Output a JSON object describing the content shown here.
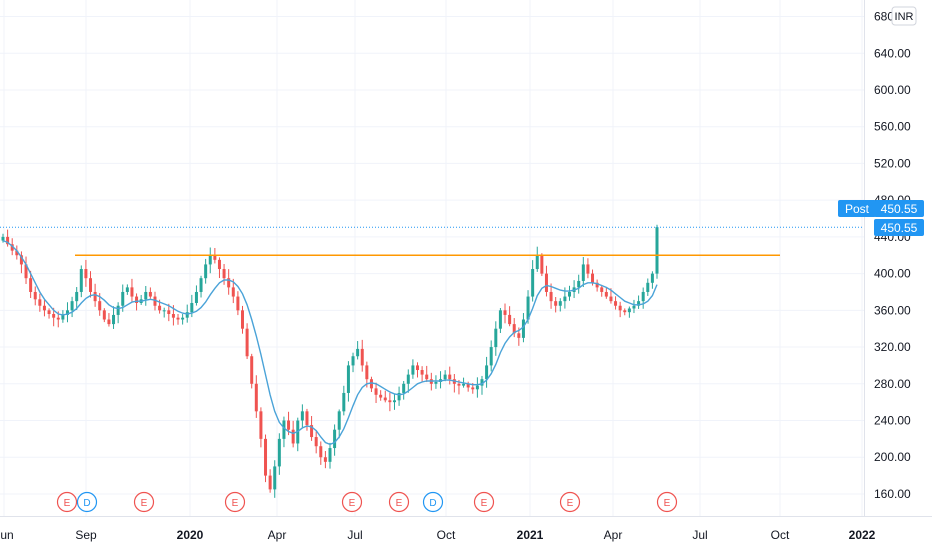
{
  "currency": "INR",
  "price_axis": {
    "ticks": [
      "160.00",
      "200.00",
      "240.00",
      "280.00",
      "320.00",
      "360.00",
      "400.00",
      "440.00",
      "480.00",
      "520.00",
      "560.00",
      "600.00",
      "640.00",
      "680.00"
    ],
    "min": 136,
    "max": 698
  },
  "last_price": {
    "value": 450.55,
    "label": "450.55",
    "post_label": "Post",
    "post_value_label": "450.55",
    "color": "#2196f3"
  },
  "time_axis": {
    "labels": [
      {
        "text": "Jun",
        "bold": false
      },
      {
        "text": "Sep",
        "bold": false
      },
      {
        "text": "2020",
        "bold": true
      },
      {
        "text": "Apr",
        "bold": false
      },
      {
        "text": "Jul",
        "bold": false
      },
      {
        "text": "Oct",
        "bold": false
      },
      {
        "text": "2021",
        "bold": true
      },
      {
        "text": "Apr",
        "bold": false
      },
      {
        "text": "Jul",
        "bold": false
      },
      {
        "text": "Oct",
        "bold": false
      },
      {
        "text": "2022",
        "bold": true
      }
    ]
  },
  "events": [
    {
      "type": "E",
      "kind": "earnings"
    },
    {
      "type": "D",
      "kind": "dividend"
    },
    {
      "type": "E",
      "kind": "earnings"
    },
    {
      "type": "E",
      "kind": "earnings"
    },
    {
      "type": "E",
      "kind": "earnings"
    },
    {
      "type": "E",
      "kind": "earnings"
    },
    {
      "type": "D",
      "kind": "dividend"
    },
    {
      "type": "E",
      "kind": "earnings"
    },
    {
      "type": "E",
      "kind": "earnings"
    },
    {
      "type": "E",
      "kind": "earnings"
    }
  ],
  "colors": {
    "up": "#26a69a",
    "down": "#ef5350",
    "ma": "#4aa3d8",
    "resistance": "#ff9800",
    "earnings": "#ef5350",
    "dividend": "#2196f3"
  },
  "chart_data": {
    "type": "candlestick",
    "price_series": {
      "name": "",
      "close": [
        440,
        432,
        425,
        420,
        410,
        395,
        380,
        372,
        365,
        360,
        356,
        352,
        350,
        355,
        360,
        370,
        380,
        405,
        395,
        380,
        370,
        360,
        350,
        345,
        355,
        365,
        380,
        385,
        375,
        368,
        372,
        380,
        375,
        365,
        360,
        360,
        356,
        352,
        350,
        352,
        358,
        368,
        380,
        395,
        410,
        420,
        415,
        405,
        395,
        385,
        375,
        360,
        340,
        310,
        280,
        250,
        220,
        180,
        165,
        190,
        220,
        240,
        230,
        215,
        240,
        250,
        235,
        222,
        212,
        200,
        195,
        210,
        230,
        250,
        270,
        300,
        310,
        318,
        300,
        285,
        275,
        268,
        265,
        262,
        260,
        262,
        270,
        280,
        290,
        300,
        295,
        290,
        285,
        280,
        282,
        285,
        290,
        285,
        280,
        278,
        280,
        276,
        274,
        278,
        285,
        300,
        320,
        340,
        360,
        355,
        345,
        335,
        330,
        350,
        375,
        405,
        420,
        400,
        380,
        370,
        365,
        370,
        375,
        380,
        385,
        392,
        410,
        400,
        390,
        385,
        380,
        375,
        370,
        365,
        360,
        358,
        362,
        365,
        370,
        380,
        390,
        400,
        450.55
      ],
      "ma": [
        436,
        434,
        430,
        425,
        418,
        410,
        400,
        390,
        380,
        372,
        366,
        360,
        356,
        355,
        356,
        358,
        362,
        368,
        373,
        376,
        377,
        375,
        371,
        366,
        363,
        362,
        363,
        366,
        369,
        370,
        370,
        371,
        372,
        371,
        369,
        367,
        365,
        362,
        359,
        357,
        356,
        357,
        359,
        363,
        369,
        377,
        384,
        390,
        393,
        393,
        391,
        386,
        378,
        366,
        350,
        332,
        312,
        290,
        268,
        250,
        238,
        232,
        228,
        226,
        228,
        232,
        234,
        233,
        229,
        222,
        216,
        214,
        216,
        222,
        231,
        243,
        256,
        268,
        276,
        280,
        281,
        280,
        277,
        274,
        271,
        269,
        268,
        269,
        272,
        276,
        280,
        282,
        283,
        283,
        283,
        283,
        284,
        284,
        283,
        282,
        281,
        280,
        279,
        279,
        280,
        284,
        291,
        301,
        314,
        324,
        331,
        336,
        338,
        342,
        350,
        362,
        376,
        384,
        387,
        386,
        384,
        382,
        381,
        381,
        382,
        384,
        388,
        390,
        390,
        389,
        387,
        385,
        382,
        378,
        374,
        370,
        368,
        366,
        366,
        367,
        370,
        376,
        388
      ],
      "resistance_level": 420,
      "ylim": [
        136,
        698
      ]
    }
  }
}
